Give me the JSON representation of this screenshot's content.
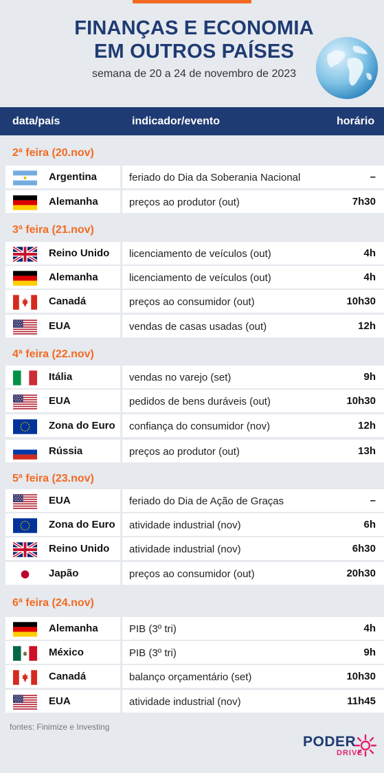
{
  "title_line1": "FINANÇAS E ECONOMIA",
  "title_line2": "EM OUTROS PAÍSES",
  "subtitle": "semana de 20 a 24 de novembro de 2023",
  "header": {
    "col1": "data/país",
    "col2": "indicador/evento",
    "col3": "horário"
  },
  "days": [
    {
      "label": "2ª feira (20.nov)",
      "rows": [
        {
          "flag": "argentina",
          "country": "Argentina",
          "event": "feriado do Dia da Soberania Nacional",
          "time": "–"
        },
        {
          "flag": "germany",
          "country": "Alemanha",
          "event": "preços ao produtor (out)",
          "time": "7h30"
        }
      ]
    },
    {
      "label": "3ª feira (21.nov)",
      "rows": [
        {
          "flag": "uk",
          "country": "Reino Unido",
          "event": "licenciamento de veículos (out)",
          "time": "4h"
        },
        {
          "flag": "germany",
          "country": "Alemanha",
          "event": "licenciamento de veículos (out)",
          "time": "4h"
        },
        {
          "flag": "canada",
          "country": "Canadá",
          "event": "preços ao consumidor (out)",
          "time": "10h30"
        },
        {
          "flag": "usa",
          "country": "EUA",
          "event": "vendas de casas usadas (out)",
          "time": "12h"
        }
      ]
    },
    {
      "label": "4ª feira (22.nov)",
      "rows": [
        {
          "flag": "italy",
          "country": "Itália",
          "event": "vendas no varejo (set)",
          "time": "9h"
        },
        {
          "flag": "usa",
          "country": "EUA",
          "event": "pedidos de bens duráveis (out)",
          "time": "10h30"
        },
        {
          "flag": "eu",
          "country": "Zona do Euro",
          "event": "confiança do consumidor (nov)",
          "time": "12h"
        },
        {
          "flag": "russia",
          "country": "Rússia",
          "event": "preços ao produtor (out)",
          "time": "13h"
        }
      ]
    },
    {
      "label": "5ª feira (23.nov)",
      "rows": [
        {
          "flag": "usa",
          "country": "EUA",
          "event": "feriado do Dia de Ação de Graças",
          "time": "–"
        },
        {
          "flag": "eu",
          "country": "Zona do Euro",
          "event": "atividade industrial (nov)",
          "time": "6h"
        },
        {
          "flag": "uk",
          "country": "Reino Unido",
          "event": "atividade industrial (nov)",
          "time": "6h30"
        },
        {
          "flag": "japan",
          "country": "Japão",
          "event": "preços ao consumidor (out)",
          "time": "20h30"
        }
      ]
    },
    {
      "label": "6ª feira (24.nov)",
      "rows": [
        {
          "flag": "germany",
          "country": "Alemanha",
          "event": "PIB (3º tri)",
          "time": "4h"
        },
        {
          "flag": "mexico",
          "country": "México",
          "event": "PIB (3º tri)",
          "time": "9h"
        },
        {
          "flag": "canada",
          "country": "Canadá",
          "event": "balanço orçamentário (set)",
          "time": "10h30"
        },
        {
          "flag": "usa",
          "country": "EUA",
          "event": "atividade industrial (nov)",
          "time": "11h45"
        }
      ]
    }
  ],
  "sources": "fontes: Finimize e Investing",
  "logo": {
    "word": "PODER",
    "sub": "DRIVE"
  }
}
